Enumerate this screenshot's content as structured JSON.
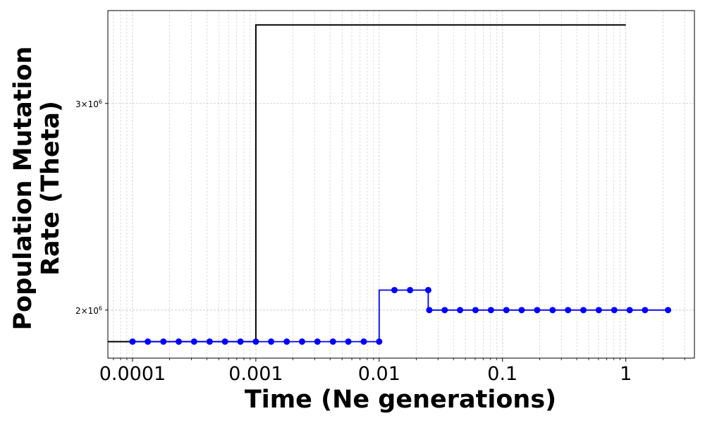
{
  "chart_data": {
    "type": "line",
    "step": true,
    "xscale": "log",
    "yscale": "log",
    "xlabel": "Time (Ne generations)",
    "ylabel_lines": [
      "Population Mutation",
      "Rate (Theta)"
    ],
    "xlim": [
      6.31e-05,
      3.6
    ],
    "ylim": [
      1820000,
      3600000
    ],
    "grid": true,
    "x_ticks": [
      {
        "value": 0.0001,
        "label": "0.0001"
      },
      {
        "value": 0.001,
        "label": "0.001"
      },
      {
        "value": 0.01,
        "label": "0.01"
      },
      {
        "value": 0.1,
        "label": "0.1"
      },
      {
        "value": 1,
        "label": "1"
      }
    ],
    "y_ticks": [
      {
        "value": 2000000,
        "base": "2×10",
        "exp": "6"
      },
      {
        "value": 3000000,
        "base": "3×10",
        "exp": "6"
      }
    ],
    "series": [
      {
        "color": "#000000",
        "markers": false,
        "x": [
          6.31e-05,
          0.001,
          0.001,
          1
        ],
        "y": [
          1880000,
          1880000,
          3500000,
          3500000
        ]
      },
      {
        "color": "#0000ff",
        "markers": true,
        "step_x": [
          0.0001,
          0.01,
          0.01,
          0.025,
          0.025,
          2.2
        ],
        "step_y": [
          1880000,
          1880000,
          2080000,
          2080000,
          2000000,
          2000000
        ],
        "points_x": [
          0.0001,
          0.000133,
          0.000178,
          0.000237,
          0.000316,
          0.000422,
          0.000562,
          0.00075,
          0.001,
          0.00133,
          0.00178,
          0.00237,
          0.00316,
          0.00422,
          0.00562,
          0.0075,
          0.01,
          0.0133,
          0.0178,
          0.025,
          0.0255,
          0.034,
          0.0453,
          0.0604,
          0.0806,
          0.1075,
          0.143,
          0.191,
          0.255,
          0.34,
          0.453,
          0.604,
          0.806,
          1.075,
          1.43,
          2.2
        ],
        "points_y": [
          1880000,
          1880000,
          1880000,
          1880000,
          1880000,
          1880000,
          1880000,
          1880000,
          1880000,
          1880000,
          1880000,
          1880000,
          1880000,
          1880000,
          1880000,
          1880000,
          1880000,
          2080000,
          2080000,
          2080000,
          2000000,
          2000000,
          2000000,
          2000000,
          2000000,
          2000000,
          2000000,
          2000000,
          2000000,
          2000000,
          2000000,
          2000000,
          2000000,
          2000000,
          2000000,
          2000000
        ]
      }
    ]
  }
}
